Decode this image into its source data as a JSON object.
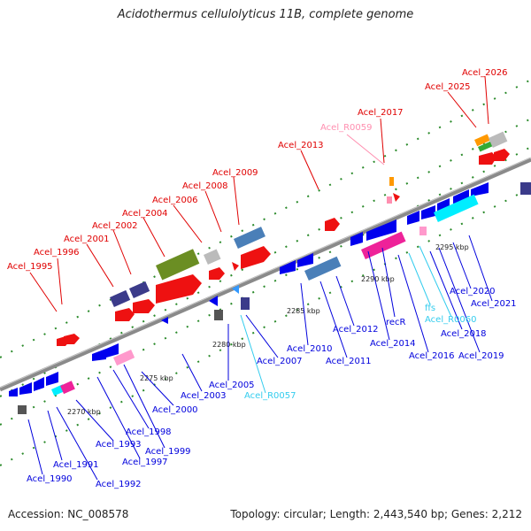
{
  "title": "Acidothermus cellulolyticus 11B, complete genome",
  "footer": {
    "accession": "Accession: NC_008578",
    "summary": "Topology: circular; Length: 2,443,540 bp; Genes: 2,212"
  },
  "colors": {
    "backbone": "#8a8a8a",
    "forward_label": "#e00000",
    "reverse_label": "#0000dd",
    "rna_label_pink": "#ff8fb0",
    "rna_label_cyan": "#33ccee",
    "tick": "#2a8a2a"
  },
  "scale": [
    {
      "label": "2270 kbp"
    },
    {
      "label": "2275 kbp"
    },
    {
      "label": "2280 kbp"
    },
    {
      "label": "2285 kbp"
    },
    {
      "label": "2290 kbp"
    },
    {
      "label": "2295 kbp"
    }
  ],
  "genes_top": [
    {
      "name": "Acel_1995"
    },
    {
      "name": "Acel_1996"
    },
    {
      "name": "Acel_2001"
    },
    {
      "name": "Acel_2002"
    },
    {
      "name": "Acel_2004"
    },
    {
      "name": "Acel_2006"
    },
    {
      "name": "Acel_2008"
    },
    {
      "name": "Acel_2009"
    },
    {
      "name": "Acel_2013"
    },
    {
      "name": "Acel_R0059"
    },
    {
      "name": "Acel_2017"
    },
    {
      "name": "Acel_2025"
    },
    {
      "name": "Acel_2026"
    }
  ],
  "genes_bottom": [
    {
      "name": "Acel_1990"
    },
    {
      "name": "Acel_1991"
    },
    {
      "name": "Acel_1992"
    },
    {
      "name": "Acel_1993"
    },
    {
      "name": "Acel_1997"
    },
    {
      "name": "Acel_1998"
    },
    {
      "name": "Acel_1999"
    },
    {
      "name": "Acel_2000"
    },
    {
      "name": "Acel_2003"
    },
    {
      "name": "Acel_2005"
    },
    {
      "name": "Acel_R0057"
    },
    {
      "name": "Acel_2007"
    },
    {
      "name": "Acel_2010"
    },
    {
      "name": "Acel_2011"
    },
    {
      "name": "Acel_2012"
    },
    {
      "name": "Acel_2014"
    },
    {
      "name": "recR"
    },
    {
      "name": "ffs"
    },
    {
      "name": "Acel_R0060"
    },
    {
      "name": "Acel_2016"
    },
    {
      "name": "Acel_2018"
    },
    {
      "name": "Acel_2019"
    },
    {
      "name": "Acel_2020"
    },
    {
      "name": "Acel_2021"
    }
  ]
}
